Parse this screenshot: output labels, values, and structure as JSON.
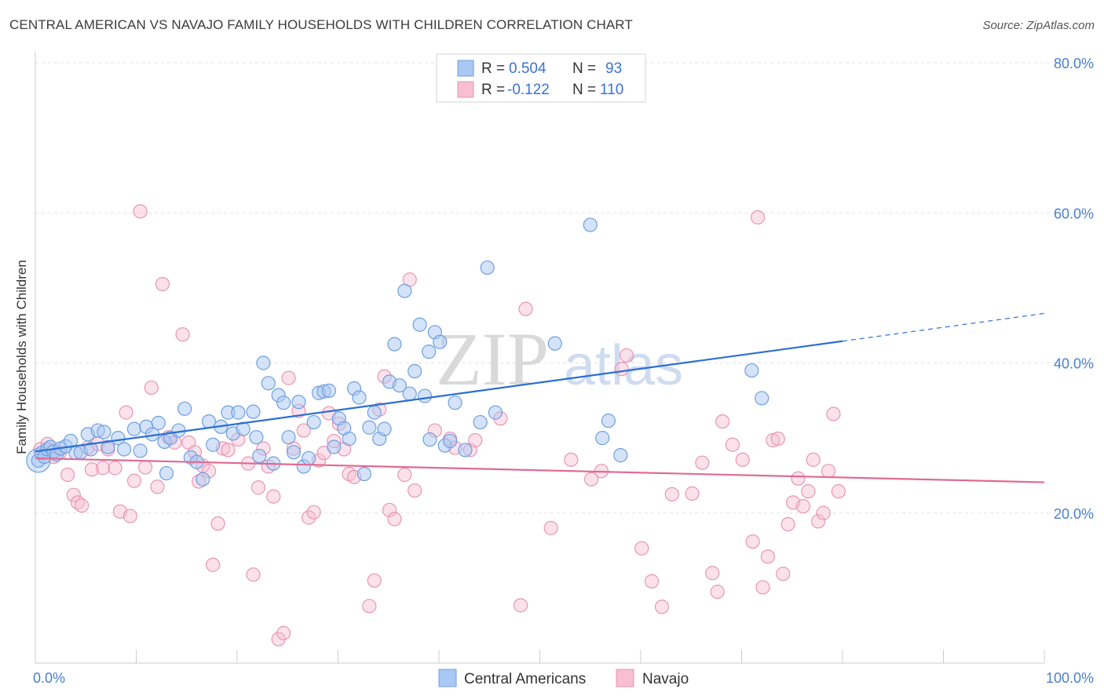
{
  "title": "CENTRAL AMERICAN VS NAVAJO FAMILY HOUSEHOLDS WITH CHILDREN CORRELATION CHART",
  "source": "Source: ZipAtlas.com",
  "watermark": "ZIPatlas",
  "colors": {
    "blue_fill": "#a9c8f3",
    "blue_stroke": "#6f9fe0",
    "blue_line": "#2a6fd4",
    "pink_fill": "#f7bfd1",
    "pink_stroke": "#e995b2",
    "pink_line": "#e06a93",
    "tick_color": "#4a7fd0",
    "grid": "#e3e3e3"
  },
  "legend": {
    "r_label": "R =",
    "n_label": "N =",
    "rows": [
      {
        "r": "0.504",
        "n": "93"
      },
      {
        "r": "-0.122",
        "n": "110"
      }
    ]
  },
  "chart_data": {
    "type": "scatter",
    "title": "CENTRAL AMERICAN VS NAVAJO FAMILY HOUSEHOLDS WITH CHILDREN CORRELATION CHART",
    "xlabel": "",
    "ylabel": "Family Households with Children",
    "xlim": [
      0,
      100
    ],
    "ylim": [
      0,
      80
    ],
    "x_tick_labels": [
      "0.0%",
      "100.0%"
    ],
    "y_ticks": [
      20,
      40,
      60,
      80
    ],
    "y_tick_labels": [
      "20.0%",
      "40.0%",
      "60.0%",
      "80.0%"
    ],
    "grid": true,
    "legend_position": "top-center",
    "series": [
      {
        "name": "Central Americans",
        "color": "#a9c8f3",
        "trend": {
          "x": [
            0,
            80
          ],
          "y": [
            28.2,
            42.9
          ],
          "dashed_extension_to": [
            100,
            46.6
          ]
        },
        "points": [
          [
            0.3,
            27.0
          ],
          [
            0.6,
            28.0
          ],
          [
            0.9,
            27.5
          ],
          [
            1.2,
            28.5
          ],
          [
            1.5,
            28.8
          ],
          [
            1.8,
            28.2
          ],
          [
            2.1,
            27.8
          ],
          [
            2.5,
            28.6
          ],
          [
            3.0,
            28.9
          ],
          [
            3.5,
            29.6
          ],
          [
            4.0,
            28.0
          ],
          [
            4.5,
            28.1
          ],
          [
            5.2,
            30.5
          ],
          [
            5.5,
            28.5
          ],
          [
            6.2,
            31.0
          ],
          [
            6.8,
            30.8
          ],
          [
            7.2,
            28.8
          ],
          [
            8.2,
            30.0
          ],
          [
            8.8,
            28.5
          ],
          [
            9.8,
            31.2
          ],
          [
            10.4,
            28.3
          ],
          [
            11.0,
            31.5
          ],
          [
            11.6,
            30.5
          ],
          [
            12.2,
            32.0
          ],
          [
            12.8,
            29.5
          ],
          [
            13.0,
            25.3
          ],
          [
            13.4,
            30.0
          ],
          [
            14.2,
            31.0
          ],
          [
            14.8,
            33.9
          ],
          [
            15.4,
            27.4
          ],
          [
            16.0,
            26.8
          ],
          [
            16.6,
            24.5
          ],
          [
            17.2,
            32.2
          ],
          [
            17.6,
            29.1
          ],
          [
            18.4,
            31.5
          ],
          [
            19.1,
            33.4
          ],
          [
            19.6,
            30.6
          ],
          [
            20.1,
            33.4
          ],
          [
            20.6,
            31.2
          ],
          [
            21.6,
            33.5
          ],
          [
            21.9,
            30.1
          ],
          [
            22.2,
            27.6
          ],
          [
            22.6,
            40.0
          ],
          [
            23.1,
            37.3
          ],
          [
            23.6,
            26.6
          ],
          [
            24.1,
            35.7
          ],
          [
            24.6,
            34.7
          ],
          [
            25.1,
            30.1
          ],
          [
            25.6,
            28.1
          ],
          [
            26.1,
            34.8
          ],
          [
            26.6,
            26.2
          ],
          [
            27.1,
            27.3
          ],
          [
            27.6,
            32.1
          ],
          [
            28.1,
            36.0
          ],
          [
            28.6,
            36.2
          ],
          [
            29.1,
            36.3
          ],
          [
            29.6,
            28.8
          ],
          [
            30.1,
            32.6
          ],
          [
            30.6,
            31.3
          ],
          [
            31.1,
            29.9
          ],
          [
            31.6,
            36.6
          ],
          [
            32.1,
            35.4
          ],
          [
            32.6,
            25.2
          ],
          [
            33.1,
            31.4
          ],
          [
            33.6,
            33.4
          ],
          [
            34.1,
            29.9
          ],
          [
            34.6,
            31.2
          ],
          [
            35.1,
            37.5
          ],
          [
            35.6,
            42.5
          ],
          [
            36.1,
            37.0
          ],
          [
            36.6,
            49.6
          ],
          [
            37.1,
            35.9
          ],
          [
            37.6,
            38.9
          ],
          [
            38.1,
            45.1
          ],
          [
            38.6,
            35.6
          ],
          [
            39.1,
            29.8
          ],
          [
            39.6,
            44.1
          ],
          [
            40.1,
            42.8
          ],
          [
            40.6,
            29.0
          ],
          [
            41.1,
            29.6
          ],
          [
            41.6,
            34.7
          ],
          [
            42.6,
            28.4
          ],
          [
            44.1,
            32.1
          ],
          [
            44.8,
            52.7
          ],
          [
            45.6,
            33.4
          ],
          [
            51.5,
            42.6
          ],
          [
            55.0,
            58.4
          ],
          [
            56.2,
            30.0
          ],
          [
            56.8,
            32.3
          ],
          [
            58.0,
            27.7
          ],
          [
            71.0,
            39.0
          ],
          [
            72.0,
            35.3
          ],
          [
            39.0,
            41.5
          ]
        ]
      },
      {
        "name": "Navajo",
        "color": "#f7bfd1",
        "trend": {
          "x": [
            0,
            100
          ],
          "y": [
            27.3,
            24.1
          ]
        },
        "points": [
          [
            0.5,
            28.5
          ],
          [
            1.2,
            29.2
          ],
          [
            1.8,
            27.5
          ],
          [
            2.4,
            28.0
          ],
          [
            3.2,
            25.1
          ],
          [
            3.8,
            22.4
          ],
          [
            4.2,
            21.4
          ],
          [
            4.6,
            21.0
          ],
          [
            5.2,
            28.7
          ],
          [
            5.6,
            25.8
          ],
          [
            6.2,
            29.2
          ],
          [
            6.7,
            26.0
          ],
          [
            7.2,
            28.5
          ],
          [
            7.9,
            26.0
          ],
          [
            8.4,
            20.2
          ],
          [
            9.0,
            33.4
          ],
          [
            9.4,
            19.6
          ],
          [
            9.8,
            24.3
          ],
          [
            10.4,
            60.2
          ],
          [
            10.9,
            26.1
          ],
          [
            11.5,
            36.7
          ],
          [
            12.1,
            23.5
          ],
          [
            12.6,
            50.5
          ],
          [
            13.2,
            30.1
          ],
          [
            13.8,
            29.4
          ],
          [
            14.6,
            43.8
          ],
          [
            15.2,
            29.4
          ],
          [
            15.8,
            28.1
          ],
          [
            16.2,
            24.2
          ],
          [
            16.6,
            26.3
          ],
          [
            17.2,
            25.6
          ],
          [
            17.6,
            13.1
          ],
          [
            18.1,
            18.6
          ],
          [
            18.6,
            28.6
          ],
          [
            19.1,
            28.4
          ],
          [
            20.1,
            29.8
          ],
          [
            21.1,
            26.6
          ],
          [
            21.6,
            11.8
          ],
          [
            22.1,
            23.4
          ],
          [
            22.6,
            28.6
          ],
          [
            23.1,
            26.2
          ],
          [
            23.6,
            22.2
          ],
          [
            24.1,
            3.2
          ],
          [
            24.6,
            4.0
          ],
          [
            25.1,
            38.0
          ],
          [
            25.6,
            28.6
          ],
          [
            26.1,
            33.6
          ],
          [
            26.6,
            31.0
          ],
          [
            27.1,
            19.4
          ],
          [
            27.6,
            20.1
          ],
          [
            28.1,
            27.0
          ],
          [
            28.6,
            28.0
          ],
          [
            29.1,
            33.3
          ],
          [
            29.6,
            29.6
          ],
          [
            30.1,
            31.9
          ],
          [
            30.6,
            28.5
          ],
          [
            31.1,
            25.2
          ],
          [
            31.6,
            24.8
          ],
          [
            33.1,
            7.6
          ],
          [
            33.6,
            11.0
          ],
          [
            34.1,
            33.8
          ],
          [
            34.6,
            38.2
          ],
          [
            35.1,
            20.4
          ],
          [
            35.6,
            19.2
          ],
          [
            36.6,
            25.1
          ],
          [
            37.1,
            51.1
          ],
          [
            37.6,
            23.0
          ],
          [
            39.6,
            31.0
          ],
          [
            41.1,
            29.9
          ],
          [
            41.6,
            28.7
          ],
          [
            43.1,
            28.4
          ],
          [
            43.6,
            29.7
          ],
          [
            46.1,
            32.6
          ],
          [
            48.1,
            7.7
          ],
          [
            48.6,
            47.2
          ],
          [
            51.1,
            18.0
          ],
          [
            53.1,
            27.1
          ],
          [
            55.1,
            24.5
          ],
          [
            56.1,
            25.6
          ],
          [
            58.1,
            39.2
          ],
          [
            58.6,
            41.0
          ],
          [
            60.1,
            15.3
          ],
          [
            61.1,
            10.9
          ],
          [
            62.1,
            7.5
          ],
          [
            63.1,
            22.5
          ],
          [
            65.1,
            22.6
          ],
          [
            66.1,
            26.7
          ],
          [
            67.1,
            12.0
          ],
          [
            67.6,
            9.5
          ],
          [
            68.1,
            32.2
          ],
          [
            69.1,
            29.1
          ],
          [
            70.1,
            27.1
          ],
          [
            71.1,
            16.2
          ],
          [
            71.6,
            59.4
          ],
          [
            72.1,
            10.1
          ],
          [
            72.6,
            14.2
          ],
          [
            73.1,
            29.7
          ],
          [
            73.6,
            29.9
          ],
          [
            74.1,
            11.9
          ],
          [
            74.6,
            18.5
          ],
          [
            75.1,
            21.4
          ],
          [
            75.6,
            24.6
          ],
          [
            76.1,
            20.9
          ],
          [
            76.6,
            22.9
          ],
          [
            77.1,
            27.1
          ],
          [
            77.6,
            18.9
          ],
          [
            78.1,
            20.0
          ],
          [
            78.6,
            25.6
          ],
          [
            79.1,
            33.2
          ],
          [
            79.6,
            22.9
          ]
        ]
      }
    ]
  },
  "bottom_legend": [
    "Central Americans",
    "Navajo"
  ]
}
